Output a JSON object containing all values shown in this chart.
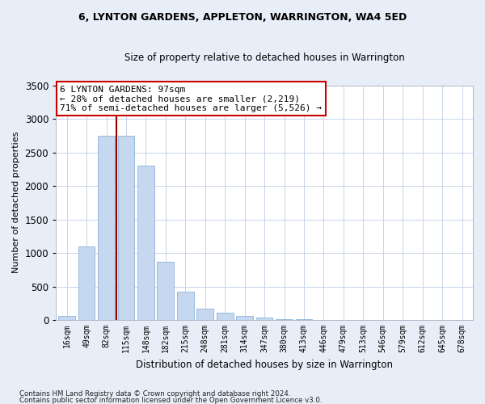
{
  "title": "6, LYNTON GARDENS, APPLETON, WARRINGTON, WA4 5ED",
  "subtitle": "Size of property relative to detached houses in Warrington",
  "xlabel": "Distribution of detached houses by size in Warrington",
  "ylabel": "Number of detached properties",
  "categories": [
    "16sqm",
    "49sqm",
    "82sqm",
    "115sqm",
    "148sqm",
    "182sqm",
    "215sqm",
    "248sqm",
    "281sqm",
    "314sqm",
    "347sqm",
    "380sqm",
    "413sqm",
    "446sqm",
    "479sqm",
    "513sqm",
    "546sqm",
    "579sqm",
    "612sqm",
    "645sqm",
    "678sqm"
  ],
  "values": [
    55,
    1100,
    2750,
    2750,
    2300,
    870,
    420,
    165,
    110,
    60,
    35,
    15,
    8,
    0,
    0,
    0,
    0,
    0,
    0,
    0,
    0
  ],
  "bar_color": "#c5d8f0",
  "bar_edge_color": "#8ab4d8",
  "vline_x_index": 2,
  "vline_color": "#990000",
  "annotation_text": "6 LYNTON GARDENS: 97sqm\n← 28% of detached houses are smaller (2,219)\n71% of semi-detached houses are larger (5,526) →",
  "annotation_box_color": "white",
  "annotation_box_edge": "#cc0000",
  "ylim": [
    0,
    3500
  ],
  "yticks": [
    0,
    500,
    1000,
    1500,
    2000,
    2500,
    3000,
    3500
  ],
  "grid_color": "#c8d4e8",
  "background_color": "#e8eef8",
  "plot_background": "white",
  "footer1": "Contains HM Land Registry data © Crown copyright and database right 2024.",
  "footer2": "Contains public sector information licensed under the Open Government Licence v3.0."
}
